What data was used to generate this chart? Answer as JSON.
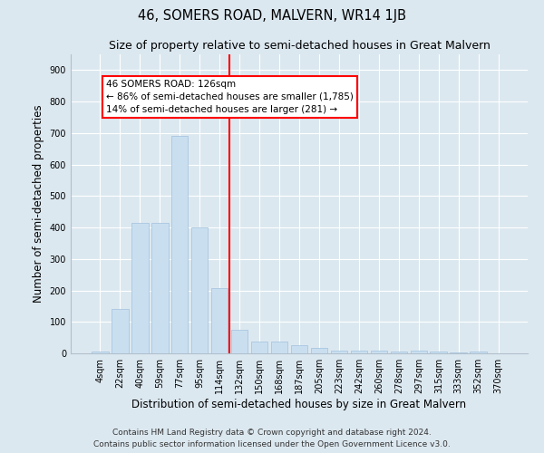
{
  "title": "46, SOMERS ROAD, MALVERN, WR14 1JB",
  "subtitle": "Size of property relative to semi-detached houses in Great Malvern",
  "xlabel": "Distribution of semi-detached houses by size in Great Malvern",
  "ylabel": "Number of semi-detached properties",
  "bar_labels": [
    "4sqm",
    "22sqm",
    "40sqm",
    "59sqm",
    "77sqm",
    "95sqm",
    "114sqm",
    "132sqm",
    "150sqm",
    "168sqm",
    "187sqm",
    "205sqm",
    "223sqm",
    "242sqm",
    "260sqm",
    "278sqm",
    "297sqm",
    "315sqm",
    "333sqm",
    "352sqm",
    "370sqm"
  ],
  "bar_heights": [
    5,
    140,
    415,
    415,
    690,
    400,
    207,
    75,
    38,
    38,
    25,
    18,
    10,
    10,
    8,
    7,
    8,
    5,
    3,
    5,
    0
  ],
  "bar_color": "#c9dff0",
  "bar_edge_color": "#a0c0dc",
  "vline_color": "red",
  "vline_x_index": 7,
  "annotation_line1": "46 SOMERS ROAD: 126sqm",
  "annotation_line2": "← 86% of semi-detached houses are smaller (1,785)",
  "annotation_line3": "14% of semi-detached houses are larger (281) →",
  "annotation_box_color": "white",
  "annotation_box_edge_color": "red",
  "ylim": [
    0,
    950
  ],
  "yticks": [
    0,
    100,
    200,
    300,
    400,
    500,
    600,
    700,
    800,
    900
  ],
  "background_color": "#dce8f0",
  "plot_background_color": "#dce8f0",
  "footer_line1": "Contains HM Land Registry data © Crown copyright and database right 2024.",
  "footer_line2": "Contains public sector information licensed under the Open Government Licence v3.0.",
  "title_fontsize": 10.5,
  "subtitle_fontsize": 9,
  "axis_label_fontsize": 8.5,
  "tick_fontsize": 7,
  "annotation_fontsize": 7.5,
  "footer_fontsize": 6.5
}
